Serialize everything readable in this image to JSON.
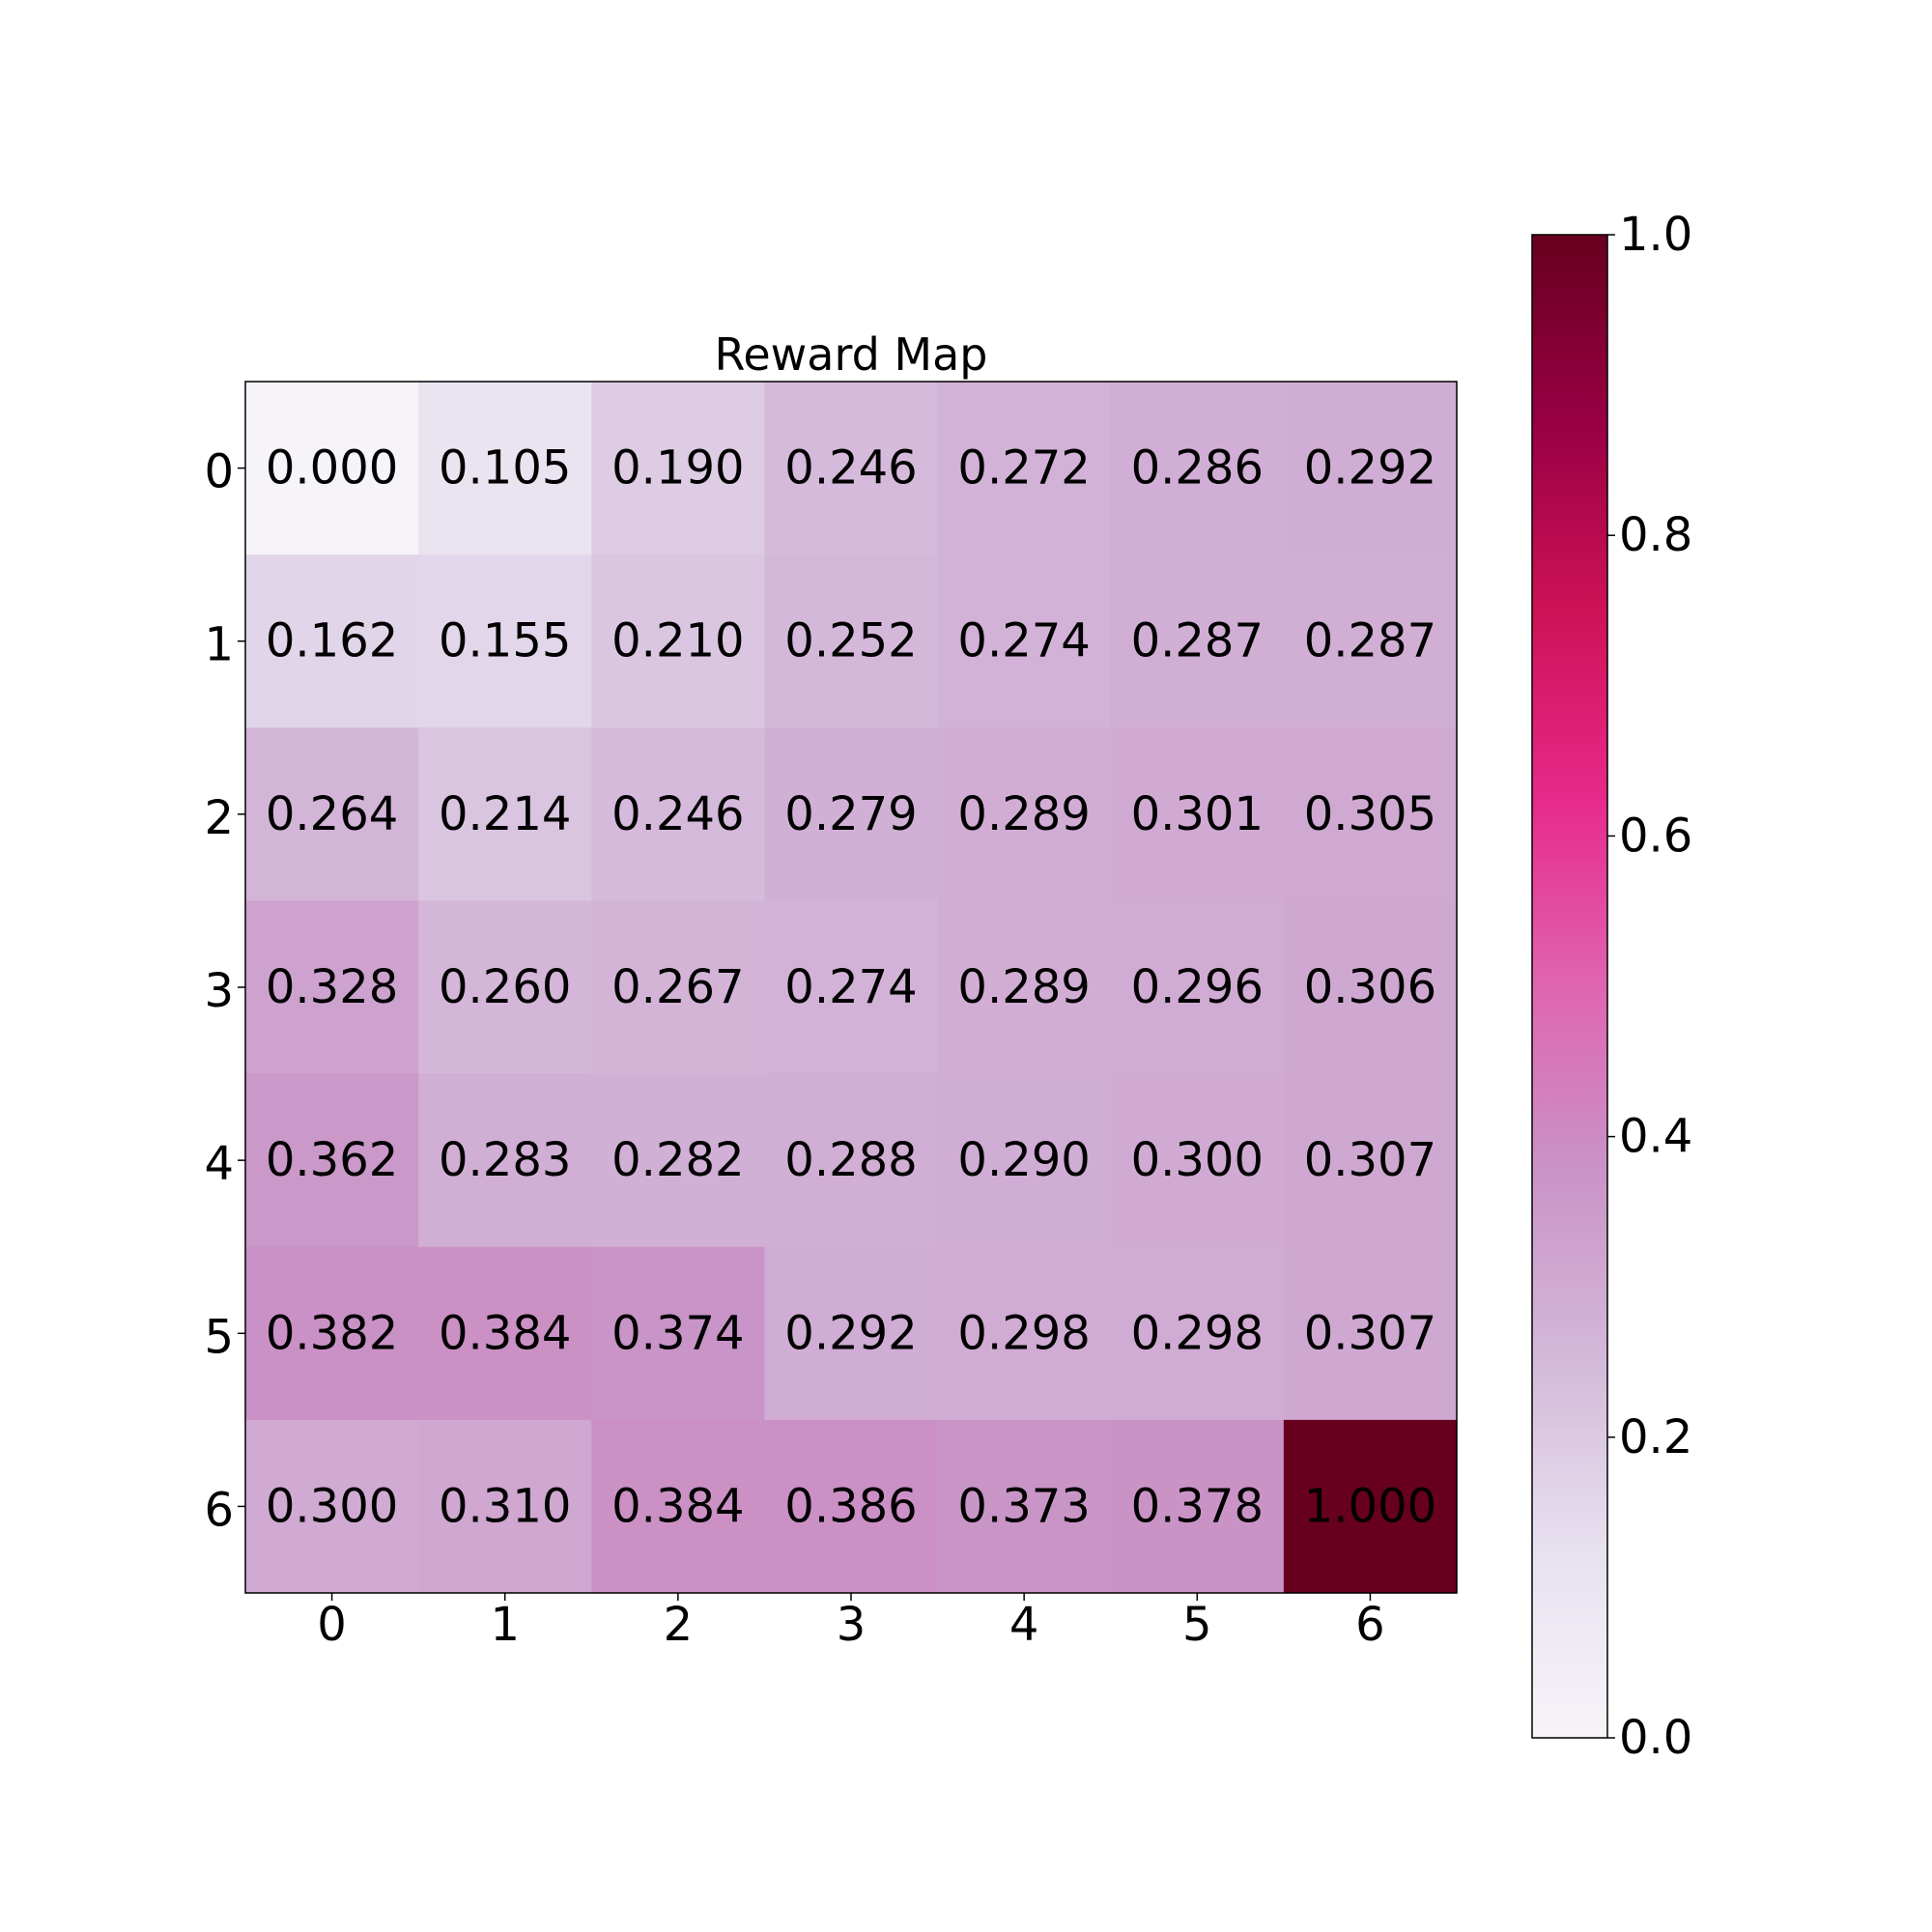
{
  "chart_data": {
    "type": "heatmap",
    "title": "Reward Map",
    "xlabel": "",
    "ylabel": "",
    "x_categories": [
      "0",
      "1",
      "2",
      "3",
      "4",
      "5",
      "6"
    ],
    "y_categories": [
      "0",
      "1",
      "2",
      "3",
      "4",
      "5",
      "6"
    ],
    "values": [
      [
        0.0,
        0.105,
        0.19,
        0.246,
        0.272,
        0.286,
        0.292
      ],
      [
        0.162,
        0.155,
        0.21,
        0.252,
        0.274,
        0.287,
        0.287
      ],
      [
        0.264,
        0.214,
        0.246,
        0.279,
        0.289,
        0.301,
        0.305
      ],
      [
        0.328,
        0.26,
        0.267,
        0.274,
        0.289,
        0.296,
        0.306
      ],
      [
        0.362,
        0.283,
        0.282,
        0.288,
        0.29,
        0.3,
        0.307
      ],
      [
        0.382,
        0.384,
        0.374,
        0.292,
        0.298,
        0.298,
        0.307
      ],
      [
        0.3,
        0.31,
        0.384,
        0.386,
        0.373,
        0.378,
        1.0
      ]
    ],
    "cell_labels": [
      [
        "0.000",
        "0.105",
        "0.190",
        "0.246",
        "0.272",
        "0.286",
        "0.292"
      ],
      [
        "0.162",
        "0.155",
        "0.210",
        "0.252",
        "0.274",
        "0.287",
        "0.287"
      ],
      [
        "0.264",
        "0.214",
        "0.246",
        "0.279",
        "0.289",
        "0.301",
        "0.305"
      ],
      [
        "0.328",
        "0.260",
        "0.267",
        "0.274",
        "0.289",
        "0.296",
        "0.306"
      ],
      [
        "0.362",
        "0.283",
        "0.282",
        "0.288",
        "0.290",
        "0.300",
        "0.307"
      ],
      [
        "0.382",
        "0.384",
        "0.374",
        "0.292",
        "0.298",
        "0.298",
        "0.307"
      ],
      [
        "0.300",
        "0.310",
        "0.384",
        "0.386",
        "0.373",
        "0.378",
        "1.000"
      ]
    ],
    "colorbar": {
      "range": [
        0.0,
        1.0
      ],
      "tick_values": [
        0.0,
        0.2,
        0.4,
        0.6,
        0.8,
        1.0
      ],
      "tick_labels": [
        "0.0",
        "0.2",
        "0.4",
        "0.6",
        "0.8",
        "1.0"
      ],
      "position": "right"
    },
    "colormap": {
      "name": "PuRd",
      "stops": [
        [
          0.0,
          "#f7f4f9"
        ],
        [
          0.125,
          "#e7e1ef"
        ],
        [
          0.25,
          "#d4b9da"
        ],
        [
          0.375,
          "#c994c7"
        ],
        [
          0.5,
          "#df65b0"
        ],
        [
          0.625,
          "#e7298a"
        ],
        [
          0.75,
          "#ce1256"
        ],
        [
          0.875,
          "#980043"
        ],
        [
          1.0,
          "#67001f"
        ]
      ]
    },
    "grid": false
  }
}
